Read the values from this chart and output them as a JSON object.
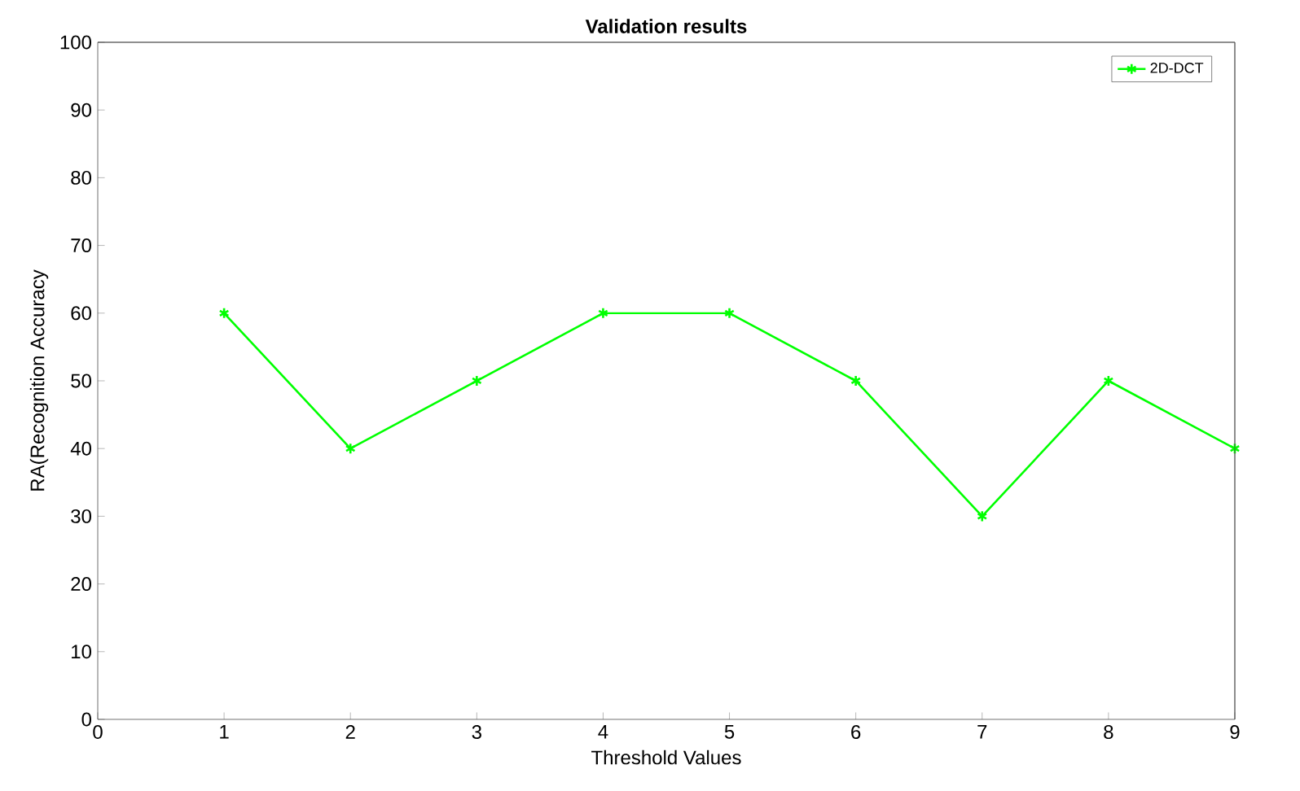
{
  "chart_data": {
    "type": "line",
    "title": "Validation results",
    "xlabel": "Threshold Values",
    "ylabel": "RA(Recognition Accuracy",
    "x": [
      1,
      2,
      3,
      4,
      5,
      6,
      7,
      8,
      9
    ],
    "series": [
      {
        "name": "2D-DCT",
        "color": "#00ff00",
        "values": [
          60,
          40,
          50,
          60,
          60,
          50,
          30,
          50,
          40
        ]
      }
    ],
    "xlim": [
      0,
      9
    ],
    "ylim": [
      0,
      100
    ],
    "xticks": [
      0,
      1,
      2,
      3,
      4,
      5,
      6,
      7,
      8,
      9
    ],
    "yticks": [
      0,
      10,
      20,
      30,
      40,
      50,
      60,
      70,
      80,
      90,
      100
    ],
    "legend": "top right",
    "marker": "cross",
    "line_style": "solid",
    "grid": false
  }
}
